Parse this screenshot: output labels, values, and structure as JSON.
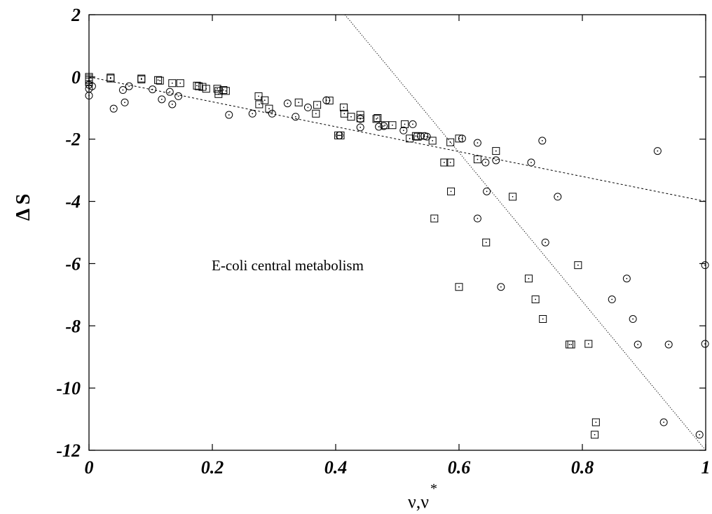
{
  "chart_data": {
    "type": "scatter",
    "title": "",
    "xlabel": "ν,ν",
    "xlabel_superscript": "*",
    "ylabel": "Δ S",
    "xlim": [
      0,
      1
    ],
    "ylim": [
      -12,
      2
    ],
    "xticks": [
      0,
      0.2,
      0.4,
      0.6,
      0.8,
      1
    ],
    "xtick_labels": [
      "0",
      "0.2",
      "0.4",
      "0.6",
      "0.8",
      "1"
    ],
    "yticks": [
      2,
      0,
      -2,
      -4,
      -6,
      -8,
      -10,
      -12
    ],
    "ytick_labels": [
      "2",
      "0",
      "-2",
      "-4",
      "-6",
      "-8",
      "-10",
      "-12"
    ],
    "grid": false,
    "annotation": "E-coli central metabolism",
    "series": [
      {
        "marker": "square",
        "points": [
          [
            0.0,
            0.0
          ],
          [
            0.0,
            -0.05
          ],
          [
            0.0,
            -0.1
          ],
          [
            0.0,
            -0.15
          ],
          [
            0.035,
            -0.02
          ],
          [
            0.035,
            -0.05
          ],
          [
            0.085,
            -0.05
          ],
          [
            0.085,
            -0.08
          ],
          [
            0.112,
            -0.1
          ],
          [
            0.115,
            -0.12
          ],
          [
            0.135,
            -0.2
          ],
          [
            0.148,
            -0.2
          ],
          [
            0.175,
            -0.28
          ],
          [
            0.178,
            -0.3
          ],
          [
            0.184,
            -0.32
          ],
          [
            0.19,
            -0.38
          ],
          [
            0.208,
            -0.38
          ],
          [
            0.21,
            -0.45
          ],
          [
            0.21,
            -0.55
          ],
          [
            0.218,
            -0.42
          ],
          [
            0.222,
            -0.45
          ],
          [
            0.275,
            -0.62
          ],
          [
            0.276,
            -0.88
          ],
          [
            0.285,
            -0.75
          ],
          [
            0.292,
            -1.02
          ],
          [
            0.34,
            -0.82
          ],
          [
            0.368,
            -1.18
          ],
          [
            0.37,
            -0.9
          ],
          [
            0.39,
            -0.76
          ],
          [
            0.404,
            -1.88
          ],
          [
            0.408,
            -1.88
          ],
          [
            0.413,
            -0.98
          ],
          [
            0.414,
            -1.18
          ],
          [
            0.425,
            -1.28
          ],
          [
            0.44,
            -1.33
          ],
          [
            0.44,
            -1.22
          ],
          [
            0.466,
            -1.35
          ],
          [
            0.468,
            -1.32
          ],
          [
            0.48,
            -1.55
          ],
          [
            0.492,
            -1.55
          ],
          [
            0.512,
            -1.52
          ],
          [
            0.52,
            -1.98
          ],
          [
            0.53,
            -1.9
          ],
          [
            0.533,
            -1.92
          ],
          [
            0.557,
            -2.05
          ],
          [
            0.56,
            -4.55
          ],
          [
            0.576,
            -2.75
          ],
          [
            0.586,
            -2.75
          ],
          [
            0.586,
            -2.1
          ],
          [
            0.587,
            -3.68
          ],
          [
            0.6,
            -6.75
          ],
          [
            0.6,
            -1.98
          ],
          [
            0.63,
            -2.65
          ],
          [
            0.644,
            -5.32
          ],
          [
            0.66,
            -2.38
          ],
          [
            0.687,
            -3.85
          ],
          [
            0.713,
            -6.48
          ],
          [
            0.724,
            -7.15
          ],
          [
            0.736,
            -7.78
          ],
          [
            0.779,
            -8.6
          ],
          [
            0.782,
            -8.6
          ],
          [
            0.793,
            -6.05
          ],
          [
            0.81,
            -8.58
          ],
          [
            0.82,
            -11.5
          ],
          [
            0.822,
            -11.1
          ]
        ]
      },
      {
        "marker": "circle",
        "points": [
          [
            0.0,
            -0.25
          ],
          [
            0.0,
            -0.38
          ],
          [
            0.0,
            -0.6
          ],
          [
            0.005,
            -0.3
          ],
          [
            0.04,
            -1.02
          ],
          [
            0.055,
            -0.42
          ],
          [
            0.058,
            -0.82
          ],
          [
            0.065,
            -0.3
          ],
          [
            0.103,
            -0.4
          ],
          [
            0.118,
            -0.72
          ],
          [
            0.131,
            -0.48
          ],
          [
            0.135,
            -0.88
          ],
          [
            0.145,
            -0.62
          ],
          [
            0.227,
            -1.22
          ],
          [
            0.265,
            -1.18
          ],
          [
            0.297,
            -1.18
          ],
          [
            0.322,
            -0.85
          ],
          [
            0.335,
            -1.28
          ],
          [
            0.355,
            -0.98
          ],
          [
            0.385,
            -0.75
          ],
          [
            0.406,
            -1.88
          ],
          [
            0.44,
            -1.35
          ],
          [
            0.44,
            -1.62
          ],
          [
            0.47,
            -1.6
          ],
          [
            0.478,
            -1.58
          ],
          [
            0.51,
            -1.72
          ],
          [
            0.525,
            -1.52
          ],
          [
            0.538,
            -1.9
          ],
          [
            0.544,
            -1.9
          ],
          [
            0.548,
            -1.92
          ],
          [
            0.605,
            -1.98
          ],
          [
            0.63,
            -2.12
          ],
          [
            0.63,
            -4.55
          ],
          [
            0.643,
            -2.75
          ],
          [
            0.645,
            -3.68
          ],
          [
            0.66,
            -2.68
          ],
          [
            0.668,
            -6.75
          ],
          [
            0.717,
            -2.75
          ],
          [
            0.735,
            -2.05
          ],
          [
            0.74,
            -5.32
          ],
          [
            0.76,
            -3.85
          ],
          [
            0.848,
            -7.15
          ],
          [
            0.872,
            -6.48
          ],
          [
            0.882,
            -7.78
          ],
          [
            0.89,
            -8.6
          ],
          [
            0.922,
            -2.38
          ],
          [
            0.932,
            -11.1
          ],
          [
            0.94,
            -8.6
          ],
          [
            0.99,
            -11.5
          ],
          [
            0.999,
            -6.05
          ],
          [
            0.999,
            -8.58
          ]
        ]
      }
    ],
    "lines": [
      {
        "style": "dashed",
        "x": [
          0,
          1
        ],
        "y": [
          0,
          -4
        ]
      },
      {
        "style": "dotted",
        "x": [
          0.415,
          1
        ],
        "y": [
          2,
          -12
        ]
      }
    ]
  }
}
